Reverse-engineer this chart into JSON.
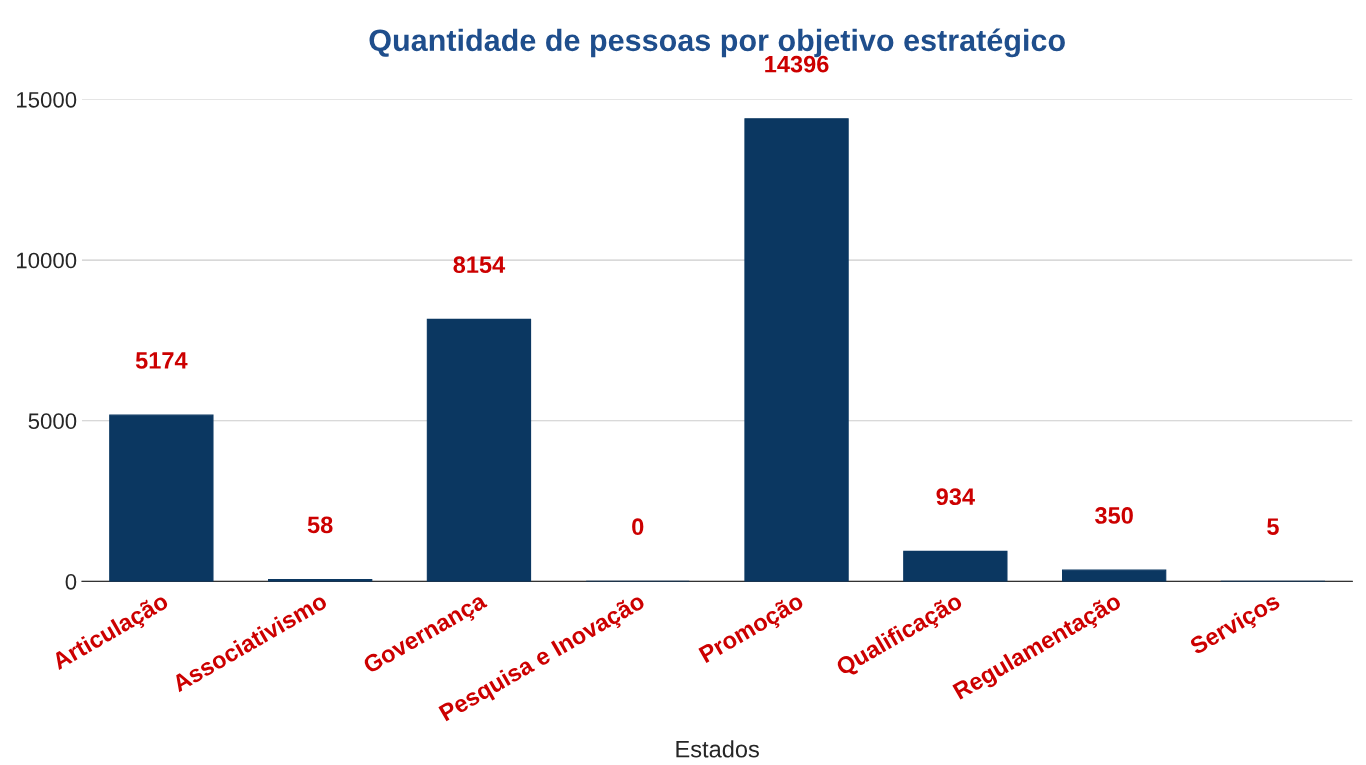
{
  "chart_data": {
    "type": "bar",
    "title": "Quantidade de pessoas por objetivo estratégico",
    "xlabel": "Estados",
    "categories": [
      "Articulação",
      "Associativismo",
      "Governança",
      "Pesquisa e Inovação",
      "Promoção",
      "Qualificação",
      "Regulamentação",
      "Serviços"
    ],
    "series": [
      {
        "color": "#0b3761",
        "values": [
          5174,
          58,
          8154,
          0,
          14396,
          934,
          350,
          5
        ]
      }
    ],
    "ylim": [
      0,
      15000
    ],
    "yticks": [
      0,
      5000,
      10000,
      15000
    ],
    "grid": "y",
    "data_labels": true
  }
}
